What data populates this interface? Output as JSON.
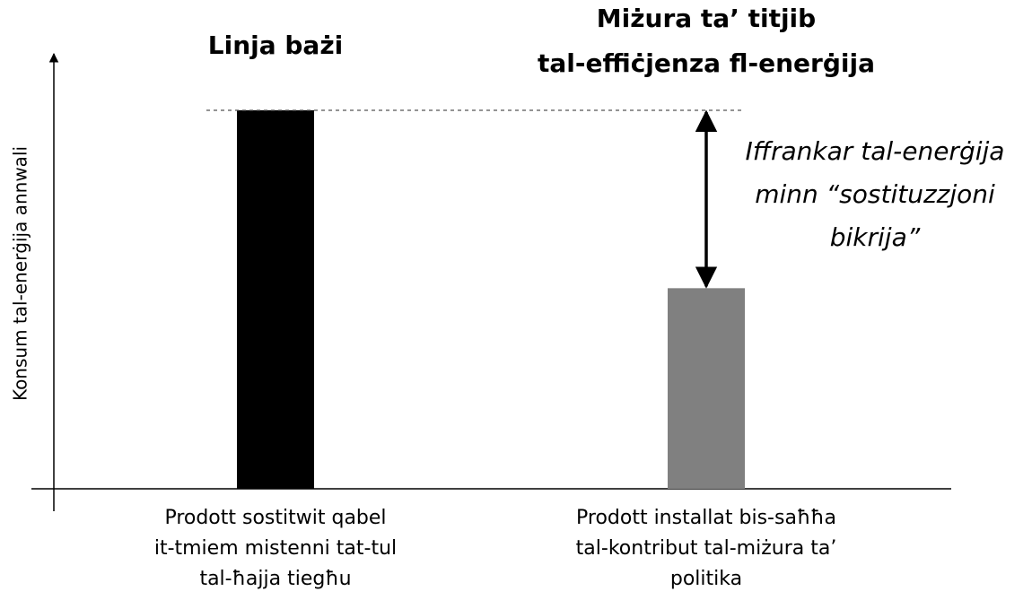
{
  "chart_data": {
    "type": "bar",
    "categories": [
      [
        "Prodott sostitwit qabel",
        "it-tmiem mistenni tat-tul",
        "tal-ħajja tiegħu"
      ],
      [
        "Prodott installat bis-saħħa",
        "tal-kontribut tal-miżura ta’",
        "politika"
      ]
    ],
    "bar_labels": [
      [
        "Linja bażi"
      ],
      [
        "Miżura ta’ titjib",
        "tal-effiċjenza fl-enerġija"
      ]
    ],
    "values": [
      100,
      53
    ],
    "colors": [
      "#000000",
      "#808080"
    ],
    "ylim": [
      0,
      100
    ],
    "ylabel": "Konsum tal-enerġija annwali",
    "annotation": [
      "Iffrankar tal-enerġija",
      "minn “sostituzzjoni",
      "bikrija”"
    ]
  }
}
